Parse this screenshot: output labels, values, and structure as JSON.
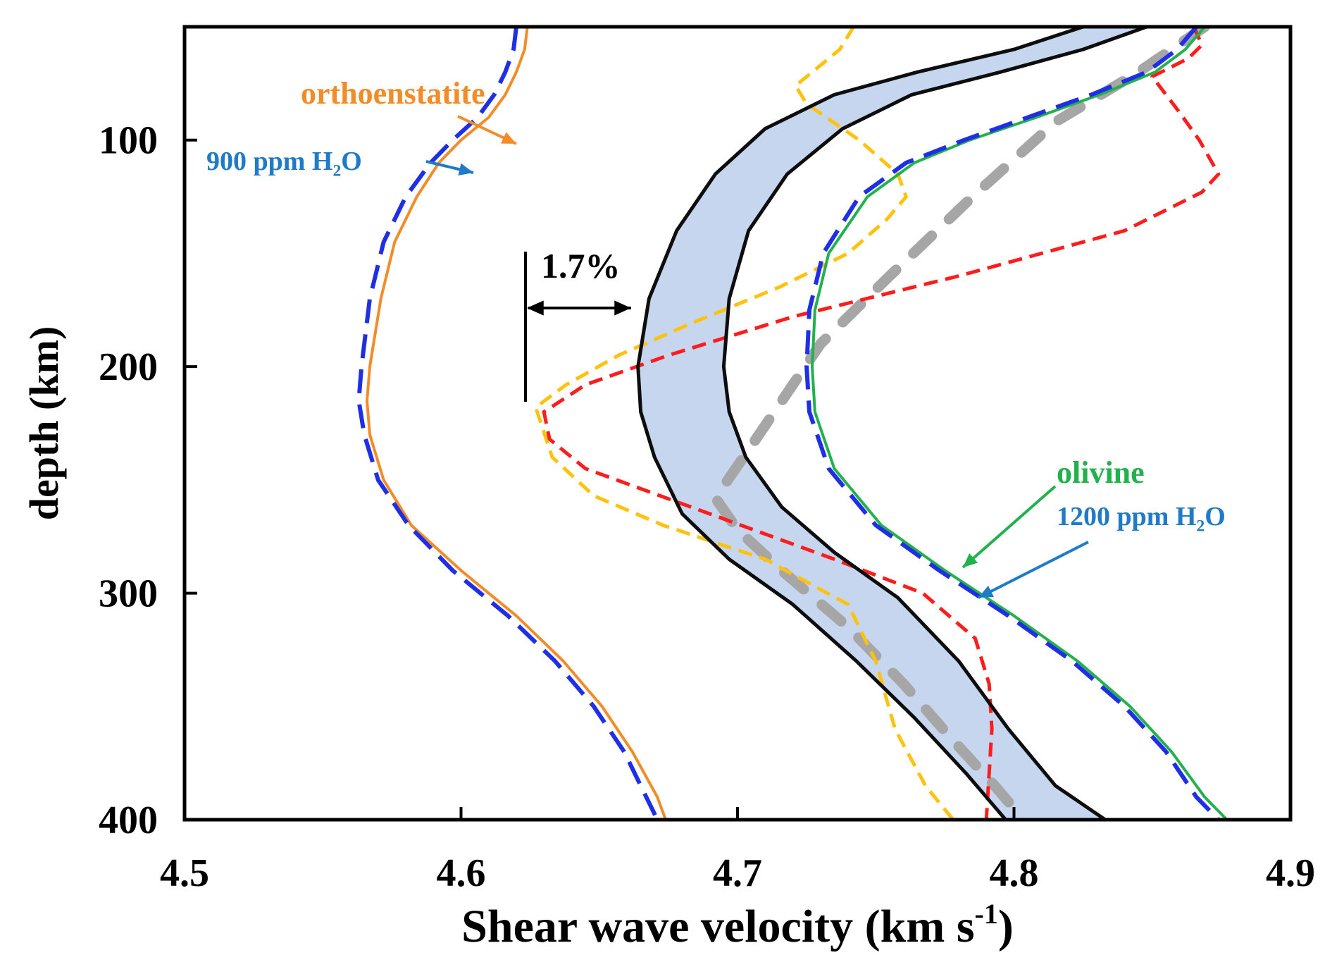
{
  "colors": {
    "frame": "#000000",
    "orthoenstatite": "#F28C28",
    "water_dashed": "#1F2FE6",
    "olivine": "#22B14C",
    "yellow_dashed": "#FFC20E",
    "red_dashed": "#FF1C1C",
    "gray_dashed": "#A6A6A6",
    "band_fill": "#C5D6EE",
    "band_edge": "#0D0D0D",
    "label_blue": "#1F7BC8",
    "label_orange": "#F28C28",
    "label_green": "#22B14C"
  },
  "chart_data": {
    "type": "line",
    "title": "",
    "xlabel": "Shear wave velocity (km s-1)",
    "xlabel_parts": {
      "main": "Shear wave velocity (km s",
      "sup": "-1",
      "end": ")"
    },
    "ylabel": "depth (km)",
    "xlim": [
      4.5,
      4.9
    ],
    "ylim": [
      400,
      50
    ],
    "y_inverted": true,
    "xticks": [
      4.5,
      4.6,
      4.7,
      4.8,
      4.9
    ],
    "xtick_labels": [
      "4.5",
      "4.6",
      "4.7",
      "4.8",
      "4.9"
    ],
    "yticks": [
      100,
      200,
      300,
      400
    ],
    "ytick_labels": [
      "100",
      "200",
      "300",
      "400"
    ],
    "grid": false,
    "series": [
      {
        "key": "orthoenstatite",
        "style": "solid",
        "color_key": "orthoenstatite",
        "points": [
          [
            4.624,
            50
          ],
          [
            4.623,
            60
          ],
          [
            4.62,
            70
          ],
          [
            4.616,
            80
          ],
          [
            4.61,
            90
          ],
          [
            4.6,
            100
          ],
          [
            4.592,
            110
          ],
          [
            4.584,
            125
          ],
          [
            4.576,
            145
          ],
          [
            4.571,
            170
          ],
          [
            4.567,
            200
          ],
          [
            4.566,
            215
          ],
          [
            4.567,
            230
          ],
          [
            4.572,
            250
          ],
          [
            4.582,
            270
          ],
          [
            4.6,
            290
          ],
          [
            4.62,
            310
          ],
          [
            4.637,
            330
          ],
          [
            4.651,
            350
          ],
          [
            4.662,
            370
          ],
          [
            4.671,
            390
          ],
          [
            4.674,
            400
          ]
        ]
      },
      {
        "key": "opx-900ppm-H2O",
        "style": "dashed",
        "color_key": "water_dashed",
        "points": [
          [
            4.62,
            50
          ],
          [
            4.619,
            60
          ],
          [
            4.616,
            70
          ],
          [
            4.612,
            80
          ],
          [
            4.606,
            90
          ],
          [
            4.597,
            100
          ],
          [
            4.589,
            110
          ],
          [
            4.58,
            125
          ],
          [
            4.572,
            145
          ],
          [
            4.567,
            170
          ],
          [
            4.564,
            200
          ],
          [
            4.563,
            215
          ],
          [
            4.565,
            230
          ],
          [
            4.57,
            250
          ],
          [
            4.581,
            270
          ],
          [
            4.597,
            290
          ],
          [
            4.617,
            310
          ],
          [
            4.634,
            330
          ],
          [
            4.648,
            350
          ],
          [
            4.659,
            370
          ],
          [
            4.667,
            390
          ],
          [
            4.671,
            400
          ]
        ]
      },
      {
        "key": "olivine",
        "style": "solid",
        "color_key": "olivine",
        "points": [
          [
            4.869,
            50
          ],
          [
            4.862,
            60
          ],
          [
            4.851,
            70
          ],
          [
            4.831,
            80
          ],
          [
            4.808,
            90
          ],
          [
            4.784,
            100
          ],
          [
            4.764,
            110
          ],
          [
            4.747,
            125
          ],
          [
            4.733,
            150
          ],
          [
            4.728,
            175
          ],
          [
            4.727,
            200
          ],
          [
            4.728,
            220
          ],
          [
            4.735,
            245
          ],
          [
            4.752,
            270
          ],
          [
            4.775,
            290
          ],
          [
            4.8,
            310
          ],
          [
            4.823,
            330
          ],
          [
            4.842,
            350
          ],
          [
            4.857,
            370
          ],
          [
            4.869,
            390
          ],
          [
            4.877,
            400
          ]
        ]
      },
      {
        "key": "ol-1200ppm-H2O",
        "style": "dashed",
        "color_key": "water_dashed",
        "points": [
          [
            4.866,
            50
          ],
          [
            4.859,
            60
          ],
          [
            4.848,
            70
          ],
          [
            4.828,
            80
          ],
          [
            4.805,
            90
          ],
          [
            4.782,
            100
          ],
          [
            4.761,
            110
          ],
          [
            4.744,
            125
          ],
          [
            4.731,
            150
          ],
          [
            4.726,
            175
          ],
          [
            4.725,
            200
          ],
          [
            4.726,
            220
          ],
          [
            4.733,
            245
          ],
          [
            4.75,
            270
          ],
          [
            4.773,
            290
          ],
          [
            4.798,
            310
          ],
          [
            4.821,
            330
          ],
          [
            4.84,
            350
          ],
          [
            4.855,
            370
          ],
          [
            4.866,
            390
          ],
          [
            4.874,
            400
          ]
        ]
      },
      {
        "key": "band-lower-edge",
        "style": "solid",
        "color_key": "band_edge",
        "points": [
          [
            4.825,
            50
          ],
          [
            4.8,
            60
          ],
          [
            4.765,
            70
          ],
          [
            4.735,
            80
          ],
          [
            4.71,
            95
          ],
          [
            4.692,
            115
          ],
          [
            4.678,
            140
          ],
          [
            4.668,
            170
          ],
          [
            4.664,
            200
          ],
          [
            4.665,
            220
          ],
          [
            4.67,
            240
          ],
          [
            4.68,
            265
          ],
          [
            4.697,
            285
          ],
          [
            4.72,
            305
          ],
          [
            4.743,
            330
          ],
          [
            4.764,
            355
          ],
          [
            4.783,
            380
          ],
          [
            4.797,
            400
          ]
        ]
      },
      {
        "key": "band-upper-edge",
        "style": "solid",
        "color_key": "band_edge",
        "points": [
          [
            4.848,
            50
          ],
          [
            4.825,
            60
          ],
          [
            4.795,
            70
          ],
          [
            4.763,
            80
          ],
          [
            4.738,
            95
          ],
          [
            4.718,
            115
          ],
          [
            4.704,
            140
          ],
          [
            4.697,
            170
          ],
          [
            4.695,
            200
          ],
          [
            4.697,
            220
          ],
          [
            4.703,
            240
          ],
          [
            4.716,
            262
          ],
          [
            4.735,
            282
          ],
          [
            4.758,
            302
          ],
          [
            4.78,
            330
          ],
          [
            4.798,
            360
          ],
          [
            4.815,
            385
          ],
          [
            4.833,
            400
          ]
        ]
      },
      {
        "key": "yellow-dashed",
        "style": "dashed",
        "color_key": "yellow_dashed",
        "points": [
          [
            4.742,
            50
          ],
          [
            4.737,
            60
          ],
          [
            4.727,
            70
          ],
          [
            4.721,
            76
          ],
          [
            4.725,
            84
          ],
          [
            4.744,
            100
          ],
          [
            4.758,
            115
          ],
          [
            4.761,
            125
          ],
          [
            4.754,
            135
          ],
          [
            4.74,
            150
          ],
          [
            4.715,
            165
          ],
          [
            4.685,
            180
          ],
          [
            4.657,
            195
          ],
          [
            4.638,
            208
          ],
          [
            4.627,
            218
          ],
          [
            4.633,
            240
          ],
          [
            4.648,
            257
          ],
          [
            4.673,
            270
          ],
          [
            4.71,
            285
          ],
          [
            4.74,
            305
          ],
          [
            4.75,
            330
          ],
          [
            4.757,
            360
          ],
          [
            4.768,
            385
          ],
          [
            4.778,
            400
          ]
        ]
      },
      {
        "key": "red-dashed",
        "style": "dashed",
        "color_key": "red_dashed",
        "points": [
          [
            4.865,
            50
          ],
          [
            4.868,
            58
          ],
          [
            4.863,
            64
          ],
          [
            4.85,
            72
          ],
          [
            4.86,
            88
          ],
          [
            4.867,
            100
          ],
          [
            4.874,
            115
          ],
          [
            4.868,
            123
          ],
          [
            4.84,
            140
          ],
          [
            4.78,
            160
          ],
          [
            4.72,
            178
          ],
          [
            4.675,
            195
          ],
          [
            4.645,
            208
          ],
          [
            4.63,
            220
          ],
          [
            4.632,
            232
          ],
          [
            4.645,
            245
          ],
          [
            4.69,
            265
          ],
          [
            4.735,
            285
          ],
          [
            4.767,
            300
          ],
          [
            4.786,
            320
          ],
          [
            4.791,
            340
          ],
          [
            4.792,
            360
          ],
          [
            4.79,
            400
          ]
        ]
      },
      {
        "key": "gray-dashed",
        "style": "dashed",
        "color_key": "gray_dashed",
        "points": [
          [
            4.869,
            50
          ],
          [
            4.845,
            70
          ],
          [
            4.815,
            92
          ],
          [
            4.785,
            125
          ],
          [
            4.755,
            160
          ],
          [
            4.73,
            190
          ],
          [
            4.705,
            235
          ],
          [
            4.692,
            258
          ],
          [
            4.7,
            272
          ],
          [
            4.716,
            290
          ],
          [
            4.74,
            315
          ],
          [
            4.76,
            340
          ],
          [
            4.778,
            365
          ],
          [
            4.793,
            385
          ],
          [
            4.8,
            395
          ]
        ]
      }
    ],
    "annotations": [
      {
        "key": "orthoenstatite",
        "text": "orthoenstatite",
        "color_key": "label_orange"
      },
      {
        "key": "opx_water",
        "text": "900 ppm H",
        "sub": "2",
        "tail": "O",
        "color_key": "label_blue"
      },
      {
        "key": "olivine",
        "text": "olivine",
        "color_key": "label_green"
      },
      {
        "key": "ol_water",
        "text": "1200 ppm H",
        "sub": "2",
        "tail": "O",
        "color_key": "label_blue"
      },
      {
        "key": "percent",
        "text": "1.7%",
        "color_key": "frame"
      }
    ]
  }
}
